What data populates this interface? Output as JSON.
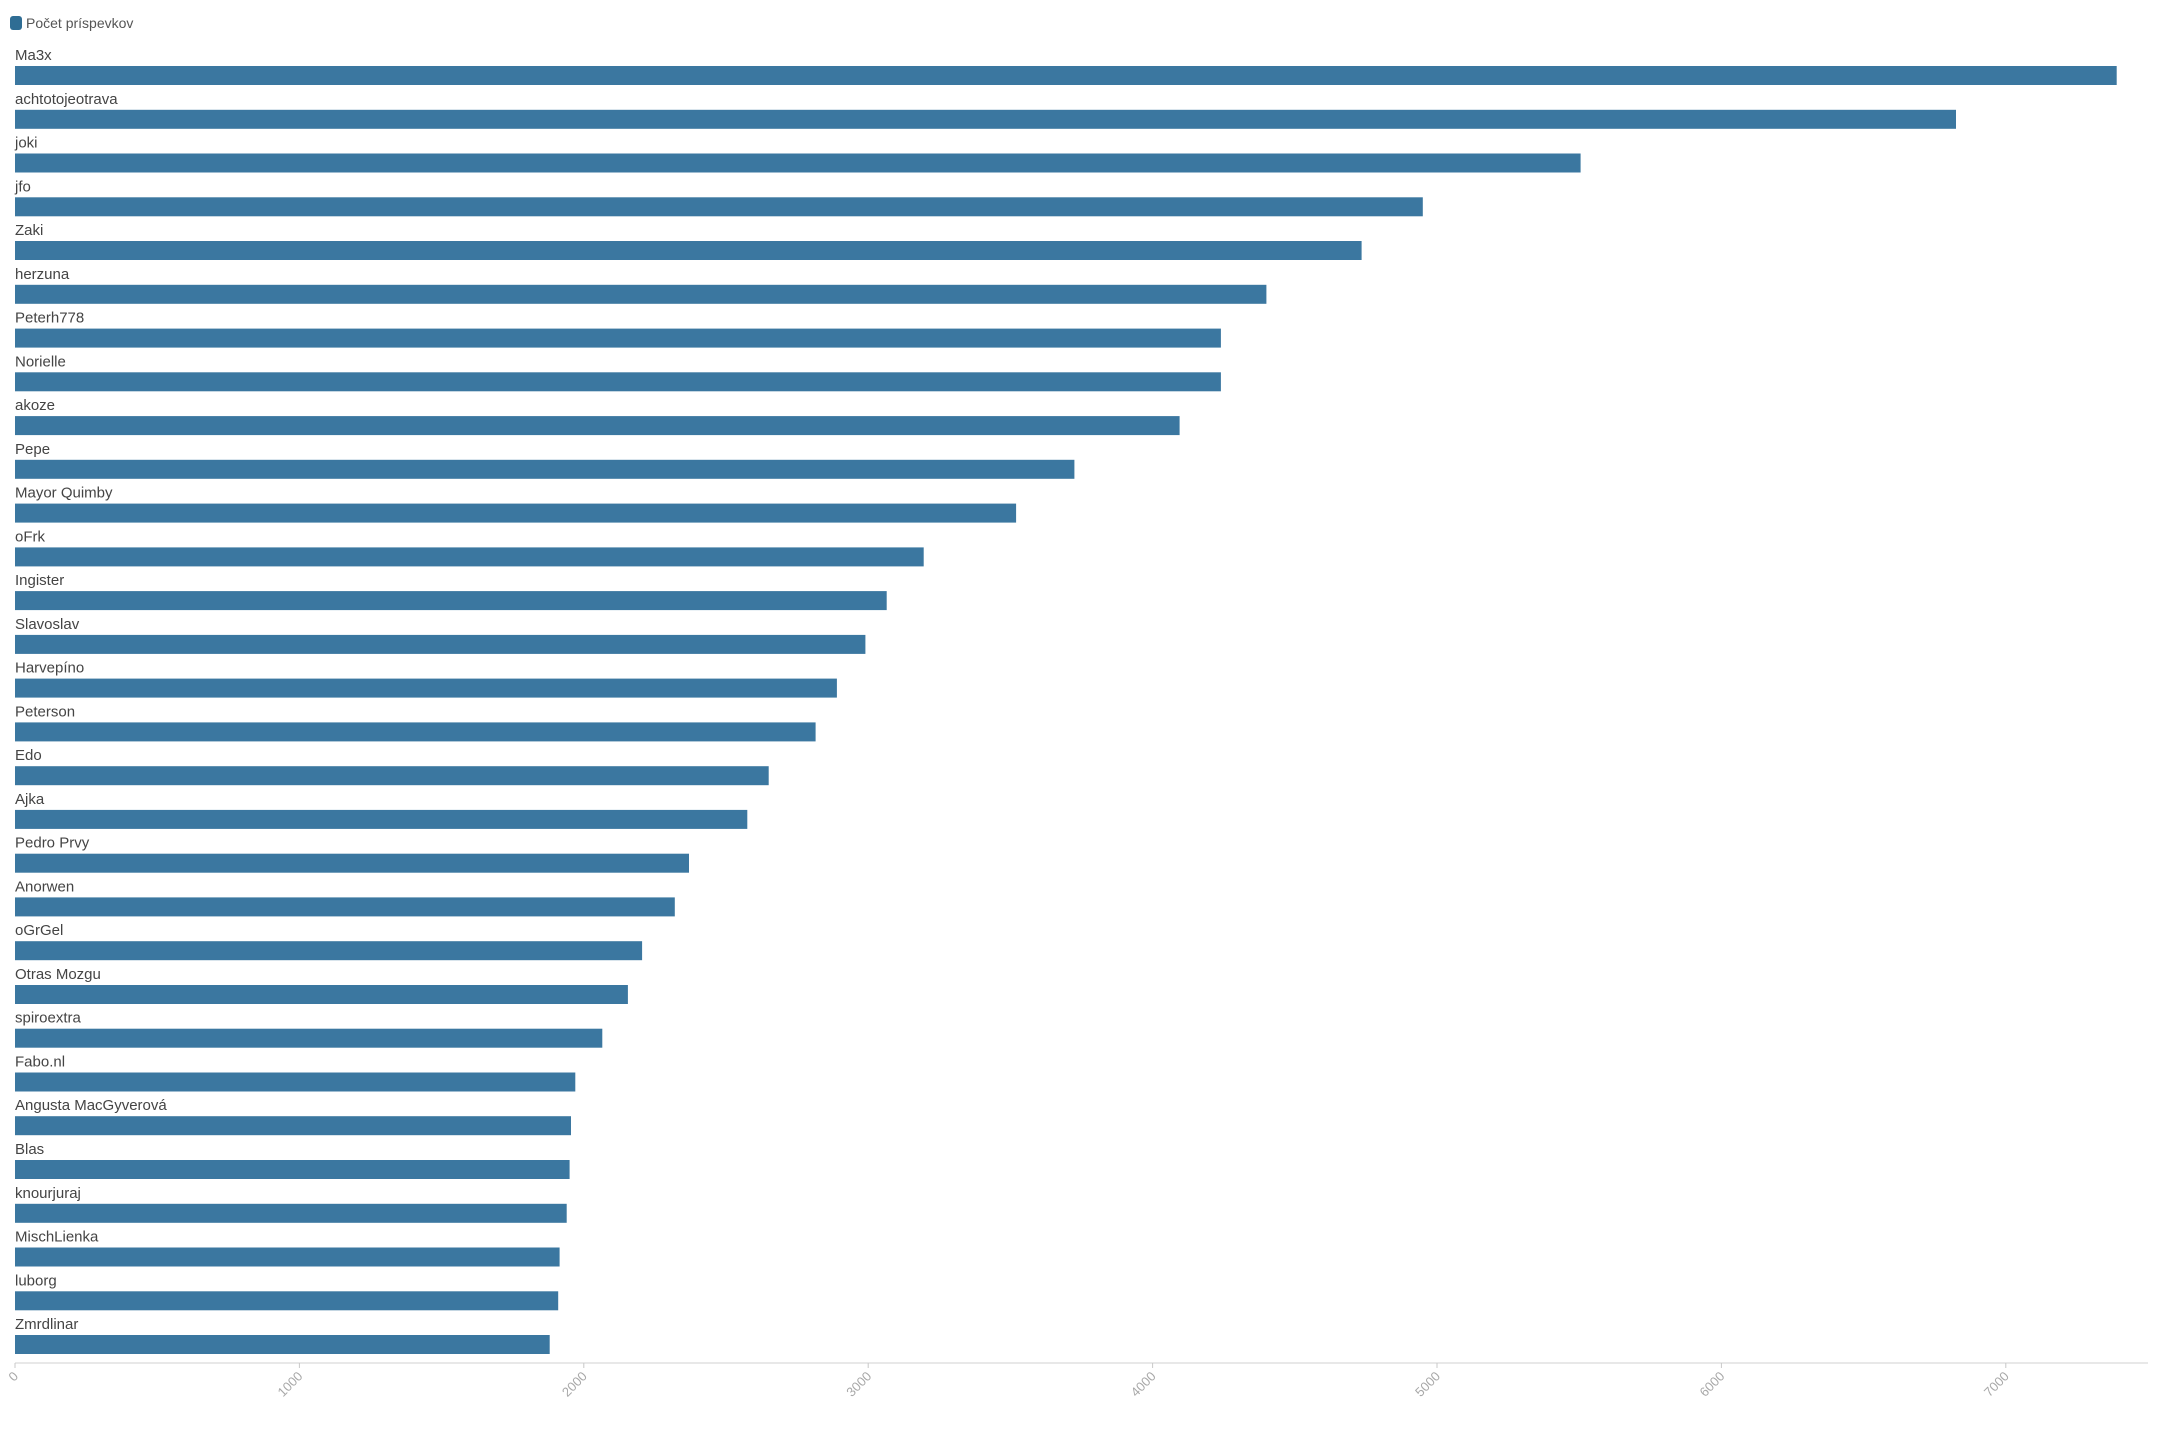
{
  "chart_data": {
    "type": "bar",
    "orientation": "horizontal",
    "legend": {
      "position": "top-left",
      "entries": [
        "Počet príspevkov"
      ]
    },
    "series": [
      {
        "name": "Počet príspevkov",
        "color": "#3b77a0",
        "values": [
          7390,
          6825,
          5505,
          4950,
          4735,
          4400,
          4240,
          4240,
          4095,
          3725,
          3520,
          3195,
          3065,
          2990,
          2890,
          2815,
          2650,
          2575,
          2370,
          2320,
          2205,
          2155,
          2065,
          1970,
          1955,
          1950,
          1940,
          1915,
          1910,
          1880
        ]
      }
    ],
    "categories": [
      "Ma3x",
      "achtotojeotrava",
      "joki",
      "jfo",
      "Zaki",
      "herzuna",
      "Peterh778",
      "Norielle",
      "akoze",
      "Pepe",
      "Mayor Quimby",
      "oFrk",
      "Ingister",
      "Slavoslav",
      "Harvepíno",
      "Peterson",
      "Edo",
      "Ajka",
      "Pedro Prvy",
      "Anorwen",
      "oGrGel",
      "Otras Mozgu",
      "spiroextra",
      "Fabo.nl",
      "Angusta MacGyverová",
      "Blas",
      "knourjuraj",
      "MischLienka",
      "luborg",
      "Zmrdlinar"
    ],
    "x_ticks": [
      "0",
      "1000",
      "2000",
      "3000",
      "4000",
      "5000",
      "6000",
      "7000"
    ],
    "xlim": [
      0,
      7500
    ],
    "grid": false,
    "xlabel": "",
    "ylabel": "",
    "title": ""
  }
}
